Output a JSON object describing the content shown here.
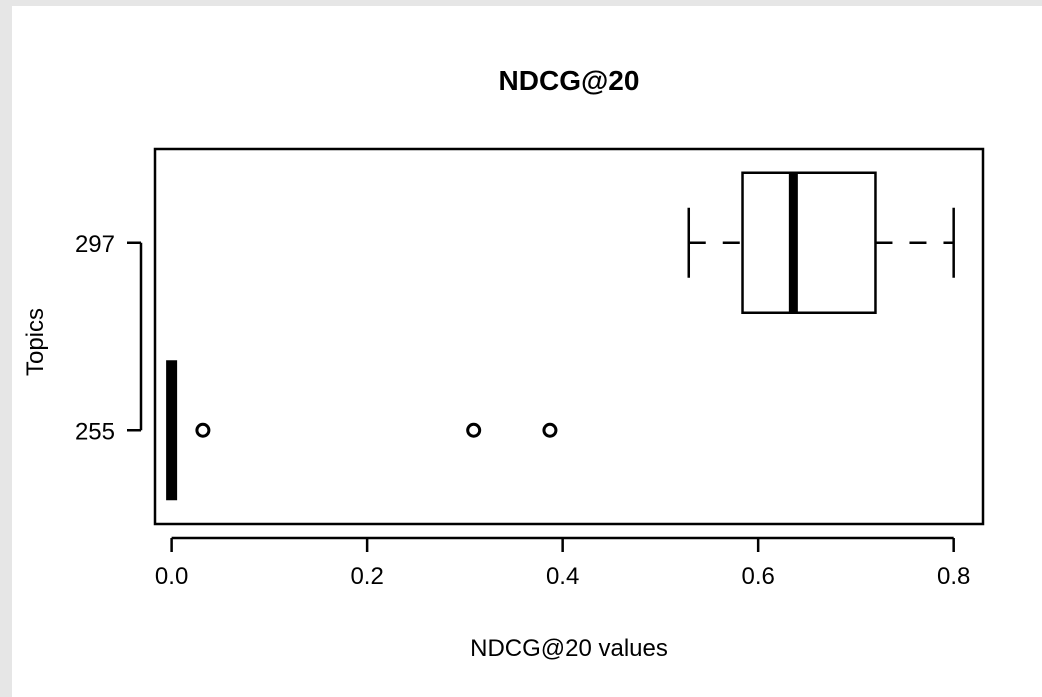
{
  "chart_data": {
    "type": "boxplot",
    "orientation": "horizontal",
    "title": "NDCG@20",
    "xlabel": "NDCG@20 values",
    "ylabel": "Topics",
    "xlim": [
      -0.017,
      0.83
    ],
    "xticks": [
      0.0,
      0.2,
      0.4,
      0.6,
      0.8
    ],
    "xtick_labels": [
      "0.0",
      "0.2",
      "0.4",
      "0.6",
      "0.8"
    ],
    "categories": [
      "255",
      "297"
    ],
    "boxes": [
      {
        "category": "255",
        "whisker_low": 0.0,
        "q1": 0.0,
        "median": 0.0,
        "q3": 0.0,
        "whisker_high": 0.0,
        "outliers": [
          0.032,
          0.309,
          0.387
        ]
      },
      {
        "category": "297",
        "whisker_low": 0.529,
        "q1": 0.584,
        "median": 0.636,
        "q3": 0.72,
        "whisker_high": 0.8,
        "outliers": []
      }
    ],
    "grid": false,
    "legend": "none"
  }
}
